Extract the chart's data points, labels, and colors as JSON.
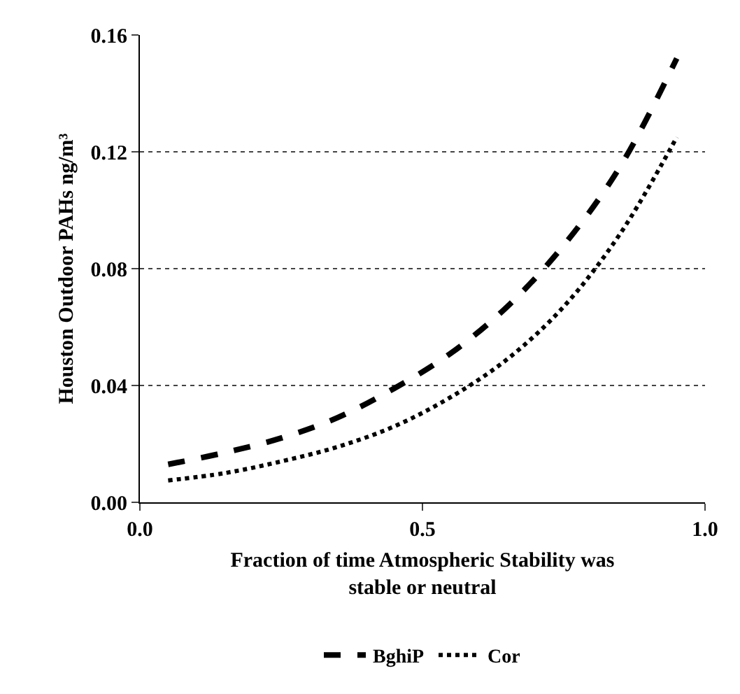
{
  "chart_data": {
    "type": "line",
    "xlabel": "Fraction of time Atmospheric Stability was stable or neutral",
    "ylabel": "Houston Outdoor PAHs ng/m³",
    "x": [
      0.05,
      0.15,
      0.25,
      0.35,
      0.45,
      0.55,
      0.65,
      0.75,
      0.85,
      0.95
    ],
    "series": [
      {
        "name": "BghiP",
        "color": "#000000",
        "line_style": "dashed",
        "values": [
          0.013,
          0.017,
          0.022,
          0.029,
          0.039,
          0.051,
          0.067,
          0.088,
          0.115,
          0.152
        ]
      },
      {
        "name": "Cor",
        "color": "#000000",
        "line_style": "dotted",
        "values": [
          0.0075,
          0.01,
          0.014,
          0.019,
          0.026,
          0.036,
          0.049,
          0.067,
          0.092,
          0.125
        ]
      }
    ],
    "xlim": [
      0,
      1
    ],
    "xticks": [
      {
        "value": 0,
        "label": "0.0"
      },
      0.5,
      {
        "value": 1,
        "label": "1.0"
      }
    ],
    "ylim": [
      0,
      0.16
    ],
    "yticks": [
      {
        "value": 0,
        "label": "0.00"
      },
      0.04,
      0.08,
      0.12,
      0.16
    ],
    "grid": "y",
    "legend": "bottom",
    "marker": "none"
  }
}
